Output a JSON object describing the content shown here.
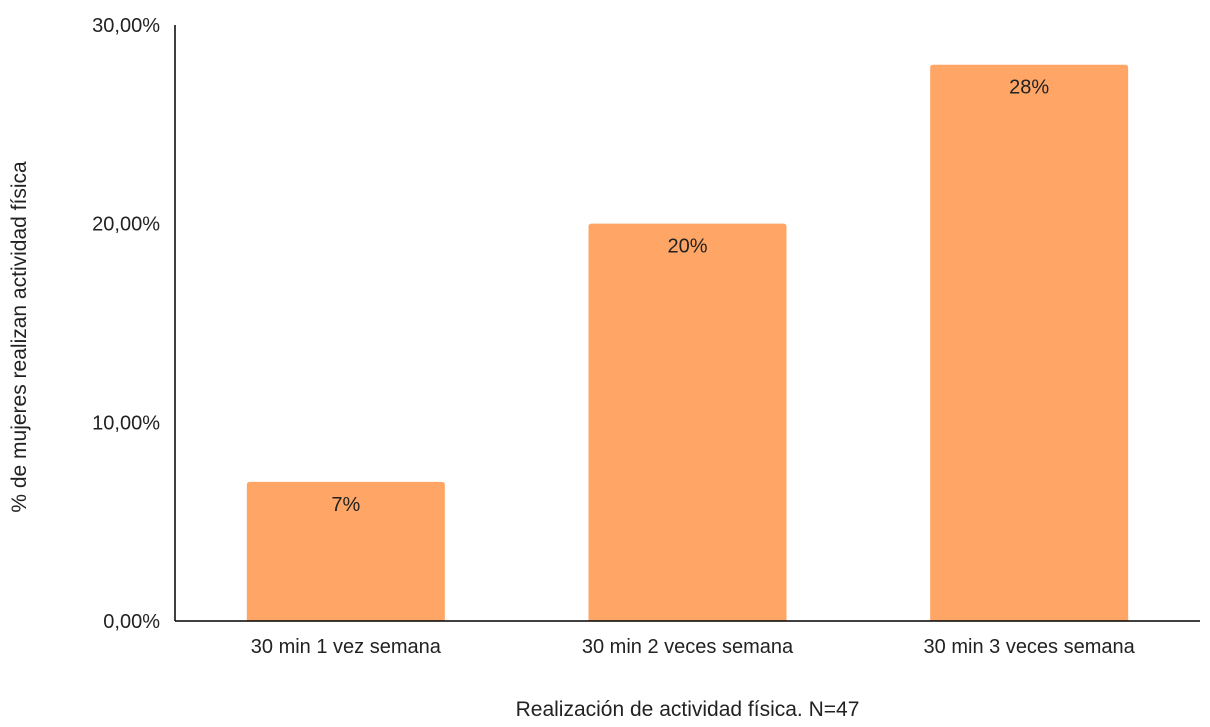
{
  "chart_data": {
    "type": "bar",
    "title": "",
    "categories": [
      "30 min 1 vez semana",
      "30 min 2 veces semana",
      "30 min 3 veces semana"
    ],
    "values": [
      7,
      20,
      28
    ],
    "data_labels": [
      "7%",
      "20%",
      "28%"
    ],
    "xlabel": "Realización de actividad física. N=47",
    "ylabel": "% de mujeres realizan actividad física",
    "ylim": [
      0,
      30
    ],
    "yticks": [
      0,
      10,
      20,
      30
    ],
    "ytick_labels": [
      "0,00%",
      "10,00%",
      "20,00%",
      "30,00%"
    ],
    "grid": false,
    "legend": "none",
    "bar_color": "#ffa666",
    "axis_color": "#000000",
    "text_color": "#222222"
  }
}
